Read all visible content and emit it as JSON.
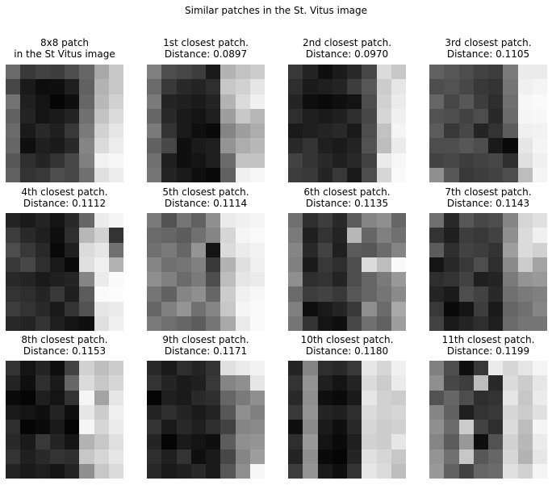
{
  "suptitle": "Similar patches in the St. Vitus image",
  "patches": [
    {
      "title_lines": [
        "8x8 patch",
        "in the St Vitus image"
      ],
      "pixels": [
        [
          0.42,
          0.22,
          0.26,
          0.24,
          0.3,
          0.4,
          0.66,
          0.78
        ],
        [
          0.28,
          0.1,
          0.05,
          0.06,
          0.12,
          0.38,
          0.7,
          0.78
        ],
        [
          0.45,
          0.12,
          0.08,
          0.02,
          0.06,
          0.4,
          0.72,
          0.82
        ],
        [
          0.38,
          0.14,
          0.08,
          0.1,
          0.14,
          0.44,
          0.76,
          0.86
        ],
        [
          0.42,
          0.1,
          0.16,
          0.12,
          0.22,
          0.48,
          0.82,
          0.9
        ],
        [
          0.4,
          0.06,
          0.12,
          0.1,
          0.16,
          0.52,
          0.86,
          0.93
        ],
        [
          0.34,
          0.18,
          0.14,
          0.2,
          0.28,
          0.5,
          0.95,
          0.97
        ],
        [
          0.38,
          0.2,
          0.22,
          0.3,
          0.28,
          0.44,
          0.88,
          0.93
        ]
      ]
    },
    {
      "title_lines": [
        "1st closest patch.",
        "Distance: 0.0897"
      ],
      "pixels": [
        [
          0.5,
          0.3,
          0.28,
          0.24,
          0.1,
          0.7,
          0.76,
          0.8
        ],
        [
          0.42,
          0.22,
          0.16,
          0.14,
          0.18,
          0.78,
          0.82,
          0.9
        ],
        [
          0.48,
          0.14,
          0.12,
          0.1,
          0.14,
          0.7,
          0.86,
          0.94
        ],
        [
          0.4,
          0.16,
          0.1,
          0.08,
          0.12,
          0.62,
          0.78,
          0.72
        ],
        [
          0.48,
          0.2,
          0.1,
          0.06,
          0.04,
          0.52,
          0.62,
          0.68
        ],
        [
          0.38,
          0.28,
          0.06,
          0.1,
          0.12,
          0.58,
          0.68,
          0.72
        ],
        [
          0.44,
          0.12,
          0.06,
          0.08,
          0.12,
          0.42,
          0.76,
          0.76
        ],
        [
          0.46,
          0.14,
          0.1,
          0.06,
          0.04,
          0.38,
          0.94,
          0.97
        ]
      ]
    },
    {
      "title_lines": [
        "2nd closest patch.",
        "Distance: 0.0970"
      ],
      "pixels": [
        [
          0.22,
          0.14,
          0.06,
          0.1,
          0.16,
          0.28,
          0.86,
          0.78
        ],
        [
          0.18,
          0.1,
          0.12,
          0.14,
          0.24,
          0.34,
          0.8,
          0.9
        ],
        [
          0.14,
          0.06,
          0.04,
          0.06,
          0.08,
          0.3,
          0.82,
          0.92
        ],
        [
          0.18,
          0.12,
          0.1,
          0.12,
          0.18,
          0.28,
          0.84,
          0.94
        ],
        [
          0.1,
          0.12,
          0.14,
          0.16,
          0.1,
          0.3,
          0.76,
          0.96
        ],
        [
          0.16,
          0.2,
          0.12,
          0.1,
          0.14,
          0.32,
          0.74,
          0.92
        ],
        [
          0.26,
          0.2,
          0.16,
          0.12,
          0.16,
          0.26,
          0.92,
          0.97
        ],
        [
          0.24,
          0.22,
          0.14,
          0.22,
          0.1,
          0.3,
          0.84,
          0.98
        ]
      ]
    },
    {
      "title_lines": [
        "3rd closest patch.",
        "Distance: 0.1105"
      ],
      "pixels": [
        [
          0.38,
          0.34,
          0.3,
          0.26,
          0.24,
          0.48,
          0.92,
          0.92
        ],
        [
          0.3,
          0.32,
          0.28,
          0.22,
          0.2,
          0.46,
          0.94,
          0.96
        ],
        [
          0.4,
          0.28,
          0.34,
          0.24,
          0.18,
          0.44,
          0.97,
          0.98
        ],
        [
          0.32,
          0.3,
          0.26,
          0.3,
          0.16,
          0.42,
          0.96,
          0.97
        ],
        [
          0.36,
          0.22,
          0.28,
          0.14,
          0.2,
          0.36,
          0.94,
          0.95
        ],
        [
          0.3,
          0.3,
          0.34,
          0.3,
          0.1,
          0.04,
          0.9,
          0.96
        ],
        [
          0.26,
          0.28,
          0.24,
          0.26,
          0.28,
          0.18,
          0.88,
          0.94
        ],
        [
          0.56,
          0.34,
          0.22,
          0.24,
          0.26,
          0.3,
          0.74,
          0.96
        ]
      ]
    },
    {
      "title_lines": [
        "4th closest patch.",
        "Distance: 0.1112"
      ],
      "pixels": [
        [
          0.14,
          0.1,
          0.14,
          0.08,
          0.16,
          0.4,
          0.92,
          0.96
        ],
        [
          0.24,
          0.16,
          0.12,
          0.06,
          0.18,
          0.72,
          0.82,
          0.2
        ],
        [
          0.3,
          0.22,
          0.16,
          0.04,
          0.12,
          0.86,
          0.9,
          0.44
        ],
        [
          0.22,
          0.28,
          0.18,
          0.1,
          0.04,
          0.88,
          0.94,
          0.7
        ],
        [
          0.16,
          0.14,
          0.1,
          0.12,
          0.14,
          0.52,
          0.92,
          0.98
        ],
        [
          0.2,
          0.18,
          0.14,
          0.22,
          0.12,
          0.36,
          0.98,
          0.99
        ],
        [
          0.24,
          0.2,
          0.16,
          0.1,
          0.2,
          0.32,
          0.9,
          0.92
        ],
        [
          0.16,
          0.14,
          0.2,
          0.12,
          0.08,
          0.06,
          0.88,
          0.94
        ]
      ]
    },
    {
      "title_lines": [
        "5th closest patch.",
        "Distance: 0.1114"
      ],
      "pixels": [
        [
          0.48,
          0.32,
          0.46,
          0.38,
          0.56,
          0.92,
          0.94,
          0.96
        ],
        [
          0.42,
          0.4,
          0.36,
          0.44,
          0.52,
          0.84,
          0.96,
          0.98
        ],
        [
          0.44,
          0.48,
          0.4,
          0.58,
          0.08,
          0.86,
          0.92,
          0.95
        ],
        [
          0.52,
          0.44,
          0.46,
          0.5,
          0.22,
          0.7,
          0.88,
          0.94
        ],
        [
          0.56,
          0.5,
          0.42,
          0.48,
          0.3,
          0.74,
          0.9,
          0.92
        ],
        [
          0.46,
          0.38,
          0.52,
          0.56,
          0.4,
          0.8,
          0.94,
          0.97
        ],
        [
          0.4,
          0.5,
          0.58,
          0.44,
          0.52,
          0.78,
          0.96,
          0.98
        ],
        [
          0.48,
          0.44,
          0.4,
          0.36,
          0.46,
          0.66,
          0.92,
          0.98
        ]
      ]
    },
    {
      "title_lines": [
        "6th closest patch.",
        "Distance: 0.1135"
      ],
      "pixels": [
        [
          0.44,
          0.18,
          0.24,
          0.16,
          0.36,
          0.52,
          0.56,
          0.4
        ],
        [
          0.48,
          0.12,
          0.2,
          0.14,
          0.72,
          0.4,
          0.5,
          0.44
        ],
        [
          0.52,
          0.16,
          0.26,
          0.12,
          0.36,
          0.34,
          0.42,
          0.52
        ],
        [
          0.5,
          0.1,
          0.22,
          0.18,
          0.3,
          0.86,
          0.74,
          0.98
        ],
        [
          0.56,
          0.18,
          0.2,
          0.14,
          0.3,
          0.4,
          0.48,
          0.6
        ],
        [
          0.42,
          0.24,
          0.26,
          0.22,
          0.34,
          0.4,
          0.46,
          0.54
        ],
        [
          0.5,
          0.06,
          0.1,
          0.14,
          0.22,
          0.56,
          0.42,
          0.66
        ],
        [
          0.46,
          0.2,
          0.08,
          0.06,
          0.28,
          0.44,
          0.38,
          0.62
        ]
      ]
    },
    {
      "title_lines": [
        "7th closest patch.",
        "Distance: 0.1143"
      ],
      "pixels": [
        [
          0.44,
          0.16,
          0.34,
          0.28,
          0.3,
          0.52,
          0.84,
          0.88
        ],
        [
          0.2,
          0.12,
          0.24,
          0.22,
          0.26,
          0.56,
          0.86,
          0.94
        ],
        [
          0.36,
          0.18,
          0.26,
          0.24,
          0.2,
          0.62,
          0.86,
          0.82
        ],
        [
          0.08,
          0.16,
          0.22,
          0.3,
          0.18,
          0.54,
          0.8,
          0.64
        ],
        [
          0.18,
          0.2,
          0.26,
          0.12,
          0.14,
          0.48,
          0.58,
          0.6
        ],
        [
          0.14,
          0.1,
          0.3,
          0.26,
          0.16,
          0.44,
          0.48,
          0.5
        ],
        [
          0.22,
          0.04,
          0.08,
          0.24,
          0.1,
          0.4,
          0.44,
          0.52
        ],
        [
          0.26,
          0.1,
          0.14,
          0.18,
          0.12,
          0.42,
          0.46,
          0.46
        ]
      ]
    },
    {
      "title_lines": [
        "8th closest patch.",
        "Distance: 0.1153"
      ],
      "pixels": [
        [
          0.2,
          0.08,
          0.14,
          0.06,
          0.26,
          0.82,
          0.74,
          0.8
        ],
        [
          0.14,
          0.06,
          0.18,
          0.1,
          0.4,
          0.86,
          0.78,
          0.84
        ],
        [
          0.04,
          0.02,
          0.12,
          0.08,
          0.2,
          0.96,
          0.64,
          0.9
        ],
        [
          0.1,
          0.08,
          0.06,
          0.14,
          0.06,
          0.9,
          0.8,
          0.94
        ],
        [
          0.18,
          0.02,
          0.04,
          0.1,
          0.02,
          0.96,
          0.84,
          0.92
        ],
        [
          0.16,
          0.1,
          0.22,
          0.14,
          0.08,
          0.7,
          0.78,
          0.88
        ],
        [
          0.2,
          0.12,
          0.16,
          0.2,
          0.18,
          0.78,
          0.84,
          0.9
        ],
        [
          0.14,
          0.1,
          0.12,
          0.08,
          0.14,
          0.56,
          0.78,
          0.86
        ]
      ]
    },
    {
      "title_lines": [
        "9th closest patch.",
        "Distance: 0.1171"
      ],
      "pixels": [
        [
          0.16,
          0.1,
          0.18,
          0.14,
          0.2,
          0.88,
          0.92,
          0.95
        ],
        [
          0.2,
          0.14,
          0.1,
          0.12,
          0.22,
          0.52,
          0.56,
          0.9
        ],
        [
          0.02,
          0.12,
          0.1,
          0.16,
          0.18,
          0.4,
          0.48,
          0.56
        ],
        [
          0.14,
          0.18,
          0.14,
          0.1,
          0.14,
          0.34,
          0.56,
          0.5
        ],
        [
          0.2,
          0.1,
          0.16,
          0.12,
          0.18,
          0.26,
          0.52,
          0.54
        ],
        [
          0.14,
          0.02,
          0.1,
          0.08,
          0.06,
          0.36,
          0.56,
          0.58
        ],
        [
          0.18,
          0.12,
          0.2,
          0.06,
          0.1,
          0.28,
          0.52,
          0.62
        ],
        [
          0.16,
          0.1,
          0.12,
          0.16,
          0.1,
          0.34,
          0.56,
          0.97
        ]
      ]
    },
    {
      "title_lines": [
        "10th closest patch.",
        "Distance: 0.1180"
      ],
      "pixels": [
        [
          0.14,
          0.52,
          0.18,
          0.16,
          0.22,
          0.9,
          0.84,
          0.94
        ],
        [
          0.2,
          0.58,
          0.12,
          0.08,
          0.14,
          0.86,
          0.8,
          0.92
        ],
        [
          0.16,
          0.56,
          0.06,
          0.04,
          0.1,
          0.9,
          0.82,
          0.8
        ],
        [
          0.22,
          0.58,
          0.14,
          0.12,
          0.18,
          0.86,
          0.82,
          0.84
        ],
        [
          0.06,
          0.54,
          0.1,
          0.06,
          0.16,
          0.84,
          0.8,
          0.82
        ],
        [
          0.18,
          0.6,
          0.08,
          0.04,
          0.12,
          0.82,
          0.8,
          0.9
        ],
        [
          0.14,
          0.56,
          0.04,
          0.02,
          0.14,
          0.88,
          0.84,
          0.78
        ],
        [
          0.24,
          0.58,
          0.1,
          0.06,
          0.2,
          0.9,
          0.86,
          0.74
        ]
      ]
    },
    {
      "title_lines": [
        "11th closest patch.",
        "Distance: 0.1199"
      ],
      "pixels": [
        [
          0.5,
          0.3,
          0.06,
          0.22,
          0.92,
          0.84,
          0.9,
          0.96
        ],
        [
          0.56,
          0.28,
          0.24,
          0.74,
          0.16,
          0.86,
          0.8,
          0.9
        ],
        [
          0.32,
          0.4,
          0.3,
          0.18,
          0.2,
          0.9,
          0.78,
          0.92
        ],
        [
          0.52,
          0.38,
          0.12,
          0.2,
          0.22,
          0.84,
          0.8,
          0.88
        ],
        [
          0.56,
          0.42,
          0.8,
          0.26,
          0.18,
          0.86,
          0.74,
          0.96
        ],
        [
          0.52,
          0.36,
          0.6,
          0.06,
          0.32,
          0.82,
          0.72,
          0.92
        ],
        [
          0.58,
          0.44,
          0.78,
          0.34,
          0.4,
          0.84,
          0.7,
          0.9
        ],
        [
          0.6,
          0.38,
          0.26,
          0.4,
          0.42,
          0.88,
          0.82,
          0.96
        ]
      ]
    }
  ]
}
